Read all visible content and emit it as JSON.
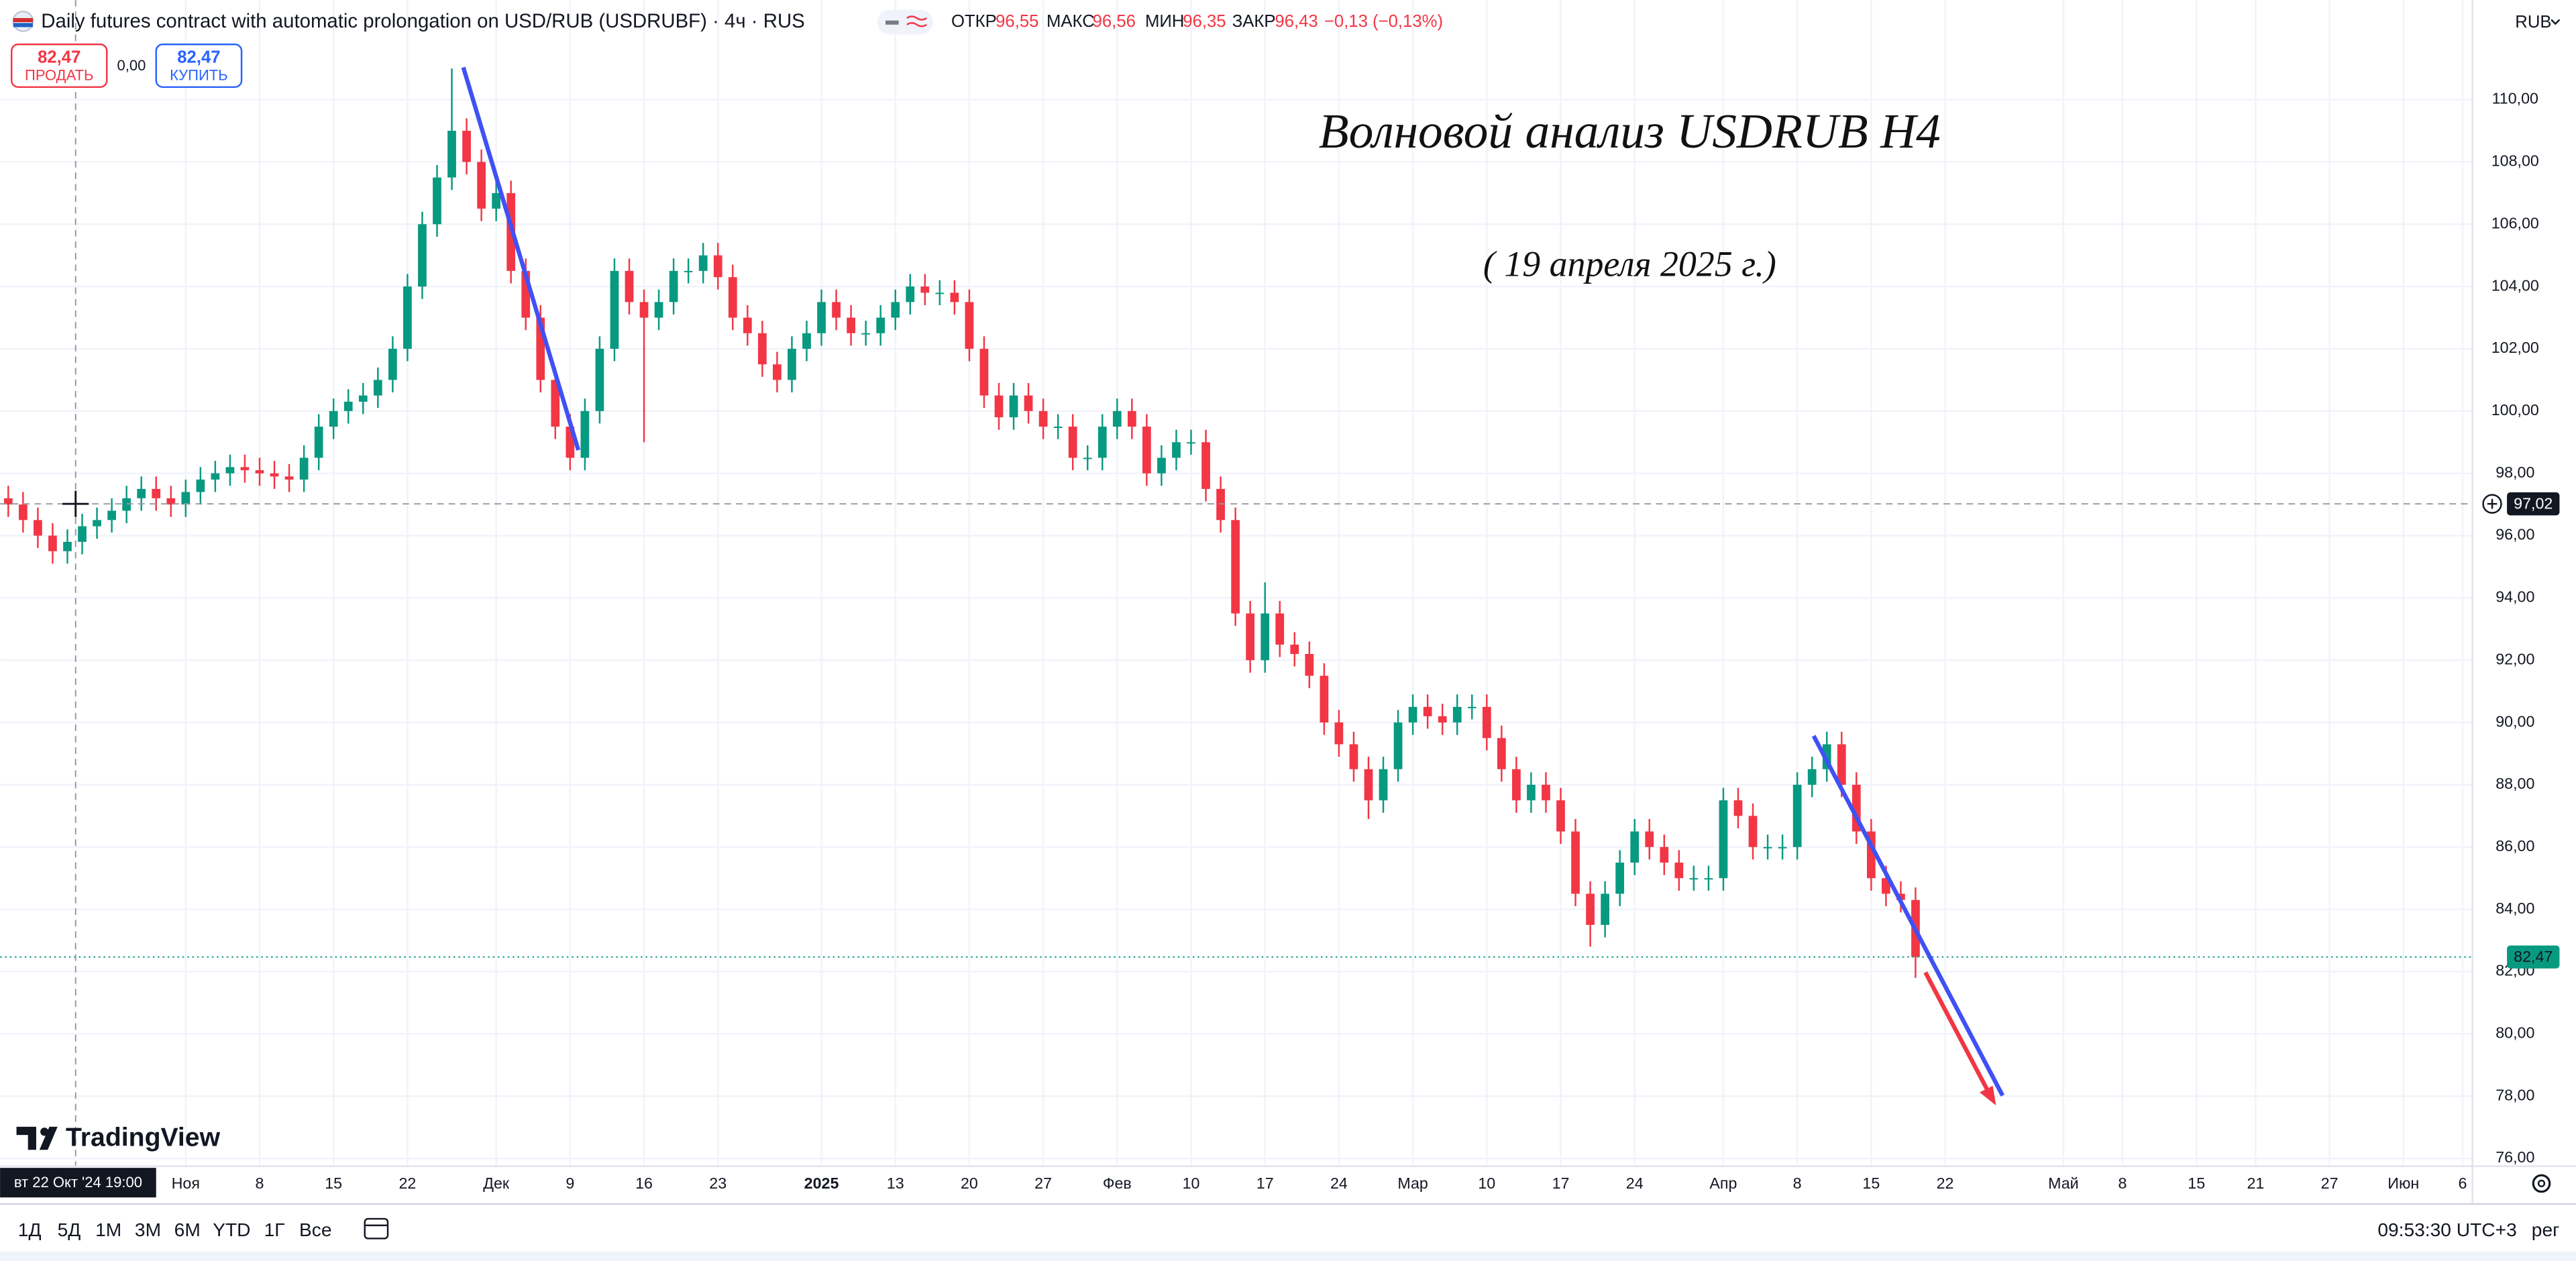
{
  "header": {
    "symbol_title": "Daily futures contract with automatic prolongation on USD/RUB (USDRUBF) · 4ч · RUS",
    "open_label": "ОТКР",
    "open": "96,55",
    "high_label": "МАКС",
    "high": "96,56",
    "low_label": "МИН",
    "low": "96,35",
    "close_label": "ЗАКР",
    "close": "96,43",
    "change": "−0,13 (−0,13%)",
    "sell_price": "82,47",
    "sell_label": "ПРОДАТЬ",
    "spread": "0,00",
    "buy_price": "82,47",
    "buy_label": "КУПИТЬ",
    "currency": "RUB"
  },
  "annotations": {
    "title": "Волновой анализ USDRUB H4",
    "date": "( 19 апреля 2025 г.)"
  },
  "logo": "TradingView",
  "toolbar": {
    "ranges": [
      "1Д",
      "5Д",
      "1М",
      "3М",
      "6М",
      "YTD",
      "1Г",
      "Все"
    ],
    "clock": "09:53:30 UTC+3",
    "session": "рег"
  },
  "chart_data": {
    "type": "candlestick",
    "up_color": "#089981",
    "down_color": "#f23645",
    "grid": true,
    "ylim": [
      75.75,
      113.2
    ],
    "yticks": [
      {
        "value": 76,
        "label": "76,00"
      },
      {
        "value": 78,
        "label": "78,00"
      },
      {
        "value": 80,
        "label": "80,00"
      },
      {
        "value": 82,
        "label": "82,00"
      },
      {
        "value": 84,
        "label": "84,00"
      },
      {
        "value": 86,
        "label": "86,00"
      },
      {
        "value": 88,
        "label": "88,00"
      },
      {
        "value": 90,
        "label": "90,00"
      },
      {
        "value": 92,
        "label": "92,00"
      },
      {
        "value": 94,
        "label": "94,00"
      },
      {
        "value": 96,
        "label": "96,00"
      },
      {
        "value": 98,
        "label": "98,00"
      },
      {
        "value": 100,
        "label": "100,00"
      },
      {
        "value": 102,
        "label": "102,00"
      },
      {
        "value": 104,
        "label": "104,00"
      },
      {
        "value": 106,
        "label": "106,00"
      },
      {
        "value": 108,
        "label": "108,00"
      },
      {
        "value": 110,
        "label": "110,00"
      }
    ],
    "last_price": {
      "value": 82.47,
      "label": "82,47"
    },
    "crosshair": {
      "value": 97.02,
      "label": "97,02",
      "time_label": "вт 22 Окт '24 19:00"
    },
    "categories": [
      null,
      null,
      null,
      null,
      null,
      null,
      null,
      null,
      null,
      null,
      null,
      null,
      "Ноя",
      null,
      null,
      null,
      null,
      "8",
      null,
      null,
      null,
      null,
      "15",
      null,
      null,
      null,
      null,
      "22",
      null,
      null,
      null,
      null,
      null,
      "Дек",
      null,
      null,
      null,
      null,
      "9",
      null,
      null,
      null,
      null,
      "16",
      null,
      null,
      null,
      null,
      "23",
      null,
      null,
      null,
      null,
      null,
      null,
      "2025",
      null,
      null,
      null,
      null,
      "13",
      null,
      null,
      null,
      null,
      "20",
      null,
      null,
      null,
      null,
      "27",
      null,
      null,
      null,
      null,
      "Фев",
      null,
      null,
      null,
      null,
      "10",
      null,
      null,
      null,
      null,
      "17",
      null,
      null,
      null,
      null,
      "24",
      null,
      null,
      null,
      null,
      "Мар",
      null,
      null,
      null,
      null,
      "10",
      null,
      null,
      null,
      null,
      "17",
      null,
      null,
      null,
      null,
      "24",
      null,
      null,
      null,
      null,
      null,
      "Апр",
      null,
      null,
      null,
      null,
      "8",
      null,
      null,
      null,
      null,
      "15",
      null,
      null,
      null,
      null,
      "22",
      null,
      null,
      null,
      null,
      null,
      null,
      null,
      "Май",
      null,
      null,
      null,
      "8",
      null,
      null,
      null,
      null,
      "15",
      null,
      null,
      null,
      "21",
      null,
      null,
      null,
      null,
      "27",
      null,
      null,
      null,
      null,
      "Июн",
      null,
      null,
      null,
      "6",
      null
    ],
    "open": [
      97.2,
      97.0,
      96.5,
      96.0,
      95.5,
      95.8,
      96.3,
      96.5,
      96.8,
      97.2,
      97.5,
      97.2,
      97.0,
      97.4,
      97.8,
      98.0,
      98.2,
      98.1,
      98.0,
      97.9,
      97.8,
      98.5,
      99.5,
      100.0,
      100.3,
      100.5,
      101.0,
      102.0,
      104.0,
      106.0,
      107.5,
      109.0,
      108.0,
      106.5,
      107.0,
      104.5,
      103.0,
      101.0,
      99.5,
      98.5,
      100.0,
      102.0,
      104.5,
      103.5,
      103.0,
      103.5,
      104.5,
      104.5,
      105.0,
      104.3,
      103.0,
      102.5,
      101.5,
      101.0,
      102.0,
      102.5,
      103.5,
      103.0,
      102.5,
      102.5,
      103.0,
      103.5,
      104.0,
      103.8,
      103.8,
      103.5,
      102.0,
      100.5,
      99.8,
      100.5,
      100.0,
      99.5,
      99.5,
      98.5,
      98.5,
      99.5,
      100.0,
      99.5,
      98.0,
      98.5,
      99.0,
      99.0,
      97.5,
      96.5,
      93.5,
      92.0,
      93.5,
      92.5,
      92.2,
      91.5,
      90.0,
      89.3,
      88.5,
      87.5,
      88.5,
      90.0,
      90.5,
      90.2,
      90.0,
      90.5,
      90.5,
      89.5,
      88.5,
      87.5,
      88.0,
      87.5,
      86.5,
      84.5,
      83.5,
      84.5,
      85.5,
      86.5,
      86.0,
      85.5,
      85.0,
      85.0,
      85.0,
      87.5,
      87.0,
      86.0,
      86.0,
      86.0,
      88.0,
      88.5,
      89.3,
      88.0,
      86.5,
      85.0,
      84.5,
      84.3,
      null,
      null,
      null,
      null,
      null,
      null,
      null,
      null,
      null,
      null,
      null,
      null,
      null,
      null,
      null,
      null,
      null,
      null,
      null,
      null,
      null,
      null,
      null,
      null,
      null,
      null,
      null,
      null,
      null,
      null,
      null,
      null,
      null,
      null,
      null,
      null,
      null,
      null
    ],
    "high": [
      97.6,
      97.4,
      96.9,
      96.4,
      96.2,
      96.7,
      96.9,
      97.2,
      97.6,
      97.9,
      97.9,
      97.6,
      97.8,
      98.2,
      98.4,
      98.6,
      98.6,
      98.5,
      98.4,
      98.3,
      98.9,
      99.9,
      100.4,
      100.7,
      100.9,
      101.4,
      102.4,
      104.4,
      106.4,
      107.9,
      111.0,
      109.4,
      108.4,
      107.4,
      107.4,
      104.9,
      103.4,
      101.4,
      99.9,
      100.4,
      102.4,
      104.9,
      104.9,
      103.9,
      103.9,
      104.9,
      104.9,
      105.4,
      105.4,
      104.7,
      103.4,
      102.9,
      101.9,
      102.4,
      102.9,
      103.9,
      103.9,
      103.4,
      102.9,
      103.4,
      103.9,
      104.4,
      104.4,
      104.2,
      104.2,
      103.9,
      102.4,
      100.9,
      100.9,
      100.9,
      100.4,
      99.9,
      99.9,
      98.9,
      99.9,
      100.4,
      100.4,
      99.9,
      98.9,
      99.4,
      99.4,
      99.4,
      97.9,
      96.9,
      93.9,
      94.5,
      93.9,
      92.9,
      92.6,
      91.9,
      90.4,
      89.7,
      88.9,
      88.9,
      90.4,
      90.9,
      90.9,
      90.6,
      90.9,
      90.9,
      90.9,
      89.9,
      88.9,
      88.4,
      88.4,
      87.9,
      86.9,
      84.9,
      84.9,
      85.9,
      86.9,
      86.9,
      86.4,
      85.9,
      85.4,
      85.4,
      87.9,
      87.9,
      87.4,
      86.4,
      86.4,
      88.4,
      88.9,
      89.7,
      89.7,
      88.4,
      86.9,
      85.4,
      84.9,
      84.7,
      null,
      null,
      null,
      null,
      null,
      null,
      null,
      null,
      null,
      null,
      null,
      null,
      null,
      null,
      null,
      null,
      null,
      null,
      null,
      null,
      null,
      null,
      null,
      null,
      null,
      null,
      null,
      null,
      null,
      null,
      null,
      null,
      null,
      null,
      null,
      null,
      null,
      null
    ],
    "low": [
      96.6,
      96.1,
      95.6,
      95.1,
      95.1,
      95.4,
      95.9,
      96.1,
      96.4,
      96.8,
      96.8,
      96.6,
      96.6,
      97.0,
      97.4,
      97.6,
      97.7,
      97.6,
      97.5,
      97.4,
      97.4,
      98.1,
      99.1,
      99.6,
      99.9,
      100.1,
      100.6,
      101.6,
      103.6,
      105.6,
      107.1,
      107.6,
      106.1,
      106.1,
      104.1,
      102.6,
      100.6,
      99.1,
      98.1,
      98.1,
      99.6,
      101.6,
      103.1,
      99.0,
      102.6,
      103.1,
      104.1,
      104.1,
      103.9,
      102.6,
      102.1,
      101.1,
      100.6,
      100.6,
      101.6,
      102.1,
      102.6,
      102.1,
      102.1,
      102.1,
      102.6,
      103.1,
      103.4,
      103.4,
      103.1,
      101.6,
      100.1,
      99.4,
      99.4,
      99.6,
      99.1,
      99.1,
      98.1,
      98.1,
      98.1,
      99.1,
      99.1,
      97.6,
      97.6,
      98.1,
      98.6,
      97.1,
      96.1,
      93.1,
      91.6,
      91.6,
      92.1,
      91.8,
      91.1,
      89.6,
      88.9,
      88.1,
      86.9,
      87.1,
      88.1,
      89.6,
      89.8,
      89.6,
      89.6,
      90.1,
      89.1,
      88.1,
      87.1,
      87.1,
      87.1,
      86.1,
      84.1,
      82.8,
      83.1,
      84.1,
      85.1,
      85.6,
      85.1,
      84.6,
      84.6,
      84.6,
      84.6,
      86.6,
      85.6,
      85.6,
      85.6,
      85.6,
      87.6,
      88.1,
      87.6,
      86.1,
      84.6,
      84.1,
      83.9,
      81.8,
      null,
      null,
      null,
      null,
      null,
      null,
      null,
      null,
      null,
      null,
      null,
      null,
      null,
      null,
      null,
      null,
      null,
      null,
      null,
      null,
      null,
      null,
      null,
      null,
      null,
      null,
      null,
      null,
      null,
      null,
      null,
      null,
      null,
      null,
      null,
      null,
      null,
      null
    ],
    "close": [
      97.0,
      96.5,
      96.0,
      95.5,
      95.8,
      96.3,
      96.5,
      96.8,
      97.2,
      97.5,
      97.2,
      97.0,
      97.4,
      97.8,
      98.0,
      98.2,
      98.1,
      98.0,
      97.9,
      97.8,
      98.5,
      99.5,
      100.0,
      100.3,
      100.5,
      101.0,
      102.0,
      104.0,
      106.0,
      107.5,
      109.0,
      108.0,
      106.5,
      107.0,
      104.5,
      103.0,
      101.0,
      99.5,
      98.5,
      100.0,
      102.0,
      104.5,
      103.5,
      103.0,
      103.5,
      104.5,
      104.5,
      105.0,
      104.3,
      103.0,
      102.5,
      101.5,
      101.0,
      102.0,
      102.5,
      103.5,
      103.0,
      102.5,
      102.5,
      103.0,
      103.5,
      104.0,
      103.8,
      103.8,
      103.5,
      102.0,
      100.5,
      99.8,
      100.5,
      100.0,
      99.5,
      99.5,
      98.5,
      98.5,
      99.5,
      100.0,
      99.5,
      98.0,
      98.5,
      99.0,
      99.0,
      97.5,
      96.5,
      93.5,
      92.0,
      93.5,
      92.5,
      92.2,
      91.5,
      90.0,
      89.3,
      88.5,
      87.5,
      88.5,
      90.0,
      90.5,
      90.2,
      90.0,
      90.5,
      90.5,
      89.5,
      88.5,
      87.5,
      88.0,
      87.5,
      86.5,
      84.5,
      83.5,
      84.5,
      85.5,
      86.5,
      86.0,
      85.5,
      85.0,
      85.0,
      85.0,
      87.5,
      87.0,
      86.0,
      86.0,
      86.0,
      88.0,
      88.5,
      89.3,
      88.0,
      86.5,
      85.0,
      84.5,
      84.3,
      82.47,
      null,
      null,
      null,
      null,
      null,
      null,
      null,
      null,
      null,
      null,
      null,
      null,
      null,
      null,
      null,
      null,
      null,
      null,
      null,
      null,
      null,
      null,
      null,
      null,
      null,
      null,
      null,
      null,
      null,
      null,
      null,
      null,
      null,
      null,
      null,
      null,
      null,
      null
    ]
  }
}
